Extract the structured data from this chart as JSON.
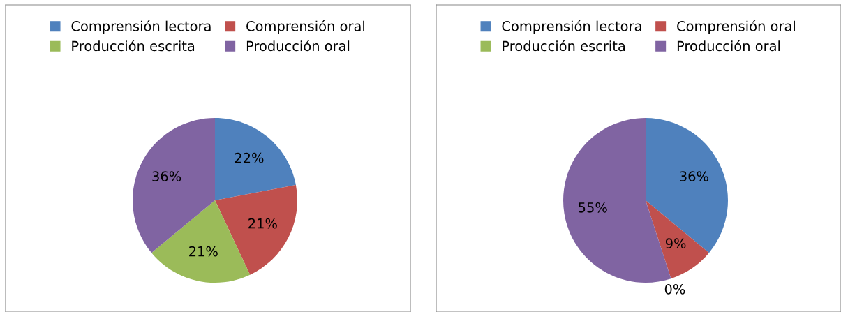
{
  "chart_data": [
    {
      "type": "pie",
      "categories": [
        "Comprensión lectora",
        "Comprensión oral",
        "Producción escrita",
        "Producción oral"
      ],
      "values": [
        22,
        21,
        21,
        36
      ],
      "value_labels": [
        "22%",
        "21%",
        "21%",
        "36%"
      ],
      "colors": [
        "#4f81bd",
        "#c0504d",
        "#9bbb59",
        "#8064a2"
      ],
      "legend": "top"
    },
    {
      "type": "pie",
      "categories": [
        "Comprensión lectora",
        "Comprensión oral",
        "Producción escrita",
        "Producción oral"
      ],
      "values": [
        36,
        9,
        0,
        55
      ],
      "value_labels": [
        "36%",
        "9%",
        "0%",
        "55%"
      ],
      "colors": [
        "#4f81bd",
        "#c0504d",
        "#9bbb59",
        "#8064a2"
      ],
      "legend": "top"
    }
  ]
}
